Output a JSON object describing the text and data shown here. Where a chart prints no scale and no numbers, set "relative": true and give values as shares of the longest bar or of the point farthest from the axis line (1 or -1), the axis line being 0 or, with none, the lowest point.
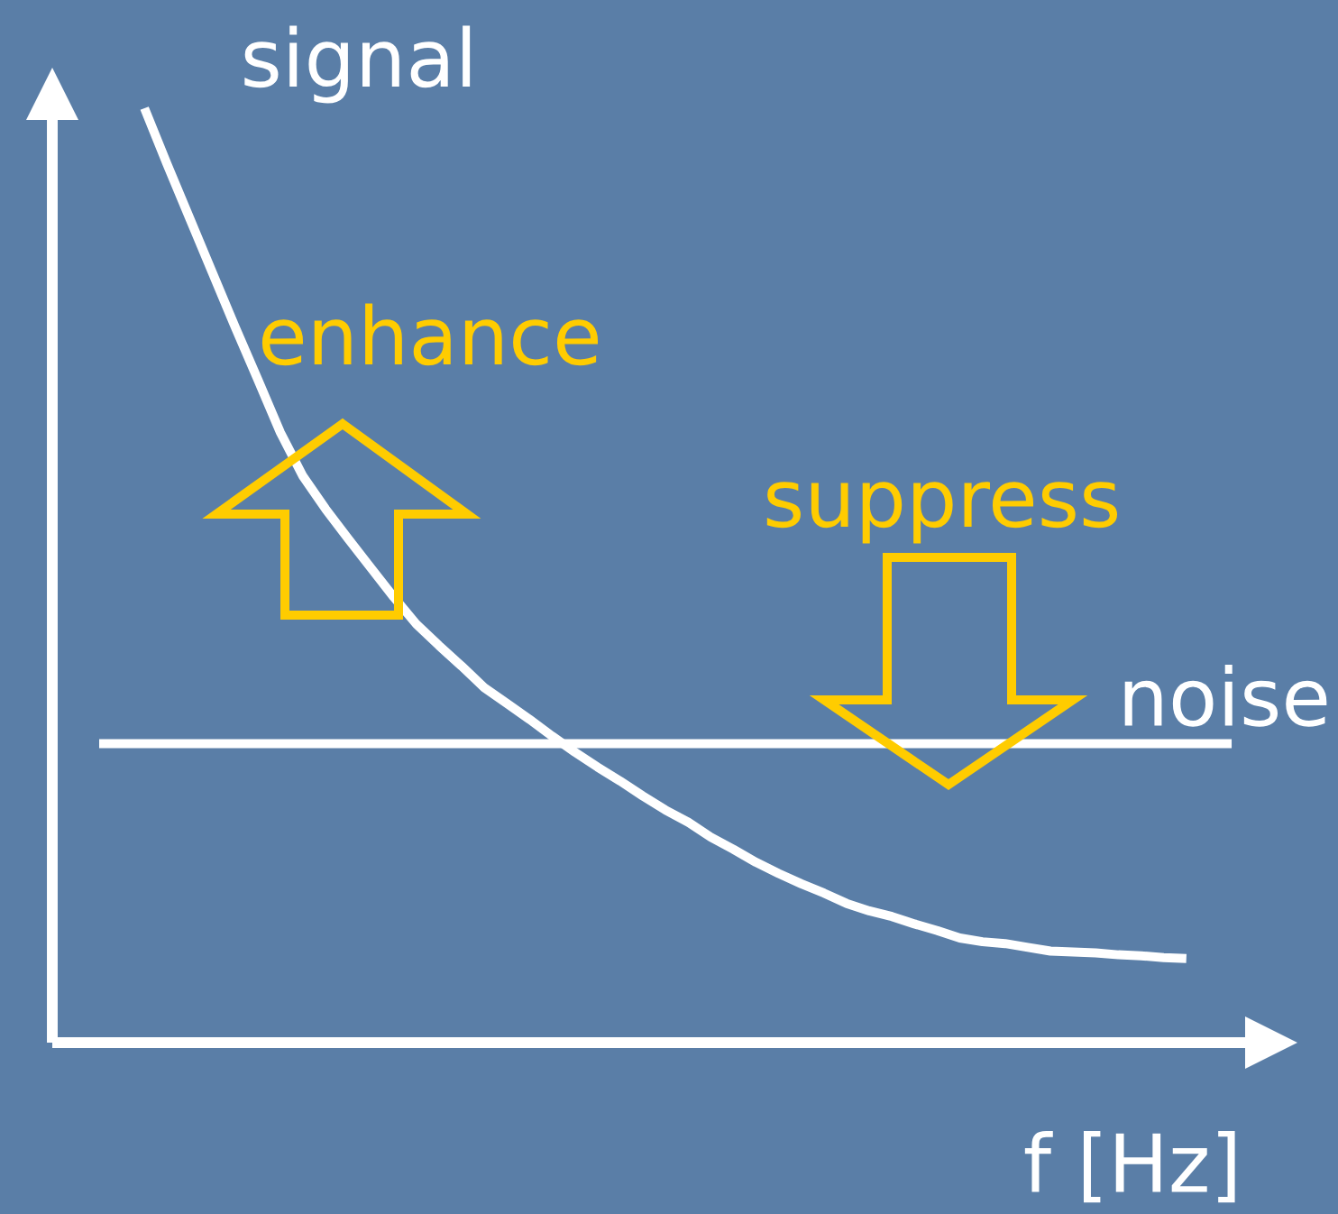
{
  "chart_data": {
    "type": "line",
    "relative": true,
    "xlabel": "f [Hz]",
    "ylabel": "signal",
    "line_style": "solid",
    "annotations": [
      "enhance",
      "suppress"
    ],
    "categories": [
      null,
      null,
      null,
      null,
      null,
      null,
      null,
      null,
      null,
      null,
      null,
      null,
      null,
      null,
      null,
      null,
      null,
      null,
      null,
      null,
      null,
      null,
      null,
      null,
      null,
      null,
      null,
      null,
      null,
      null,
      null,
      null,
      null,
      null,
      null,
      null,
      null,
      null,
      null,
      null,
      null,
      null,
      null,
      null,
      null,
      null,
      null,
      null,
      null,
      null,
      null
    ],
    "series": [
      {
        "color": "#ffffff",
        "values": [
          null,
          null,
          1.0,
          0.94,
          0.882,
          0.824,
          0.766,
          0.71,
          0.653,
          0.606,
          0.571,
          0.539,
          0.508,
          0.477,
          0.448,
          0.425,
          0.403,
          0.38,
          0.363,
          0.346,
          0.328,
          0.311,
          0.295,
          0.28,
          0.264,
          0.249,
          0.236,
          0.22,
          0.207,
          0.193,
          0.181,
          0.17,
          0.16,
          0.149,
          0.141,
          0.135,
          0.127,
          0.12,
          0.112,
          0.108,
          0.106,
          0.102,
          0.098,
          0.097,
          0.096,
          0.094,
          0.093,
          0.091,
          0.09,
          null,
          null
        ]
      },
      {
        "name": "noise",
        "color": "#ffffff",
        "values": [
          0.32,
          0.32,
          0.32,
          0.32,
          0.32,
          0.32,
          0.32,
          0.32,
          0.32,
          0.32,
          0.32,
          0.32,
          0.32,
          0.32,
          0.32,
          0.32,
          0.32,
          0.32,
          0.32,
          0.32,
          0.32,
          0.32,
          0.32,
          0.32,
          0.32,
          0.32,
          0.32,
          0.32,
          0.32,
          0.32,
          0.32,
          0.32,
          0.32,
          0.32,
          0.32,
          0.32,
          0.32,
          0.32,
          0.32,
          0.32,
          0.32,
          0.32,
          0.32,
          0.32,
          0.32,
          0.32,
          0.32,
          0.32,
          0.32,
          0.32,
          0.32
        ]
      }
    ]
  }
}
